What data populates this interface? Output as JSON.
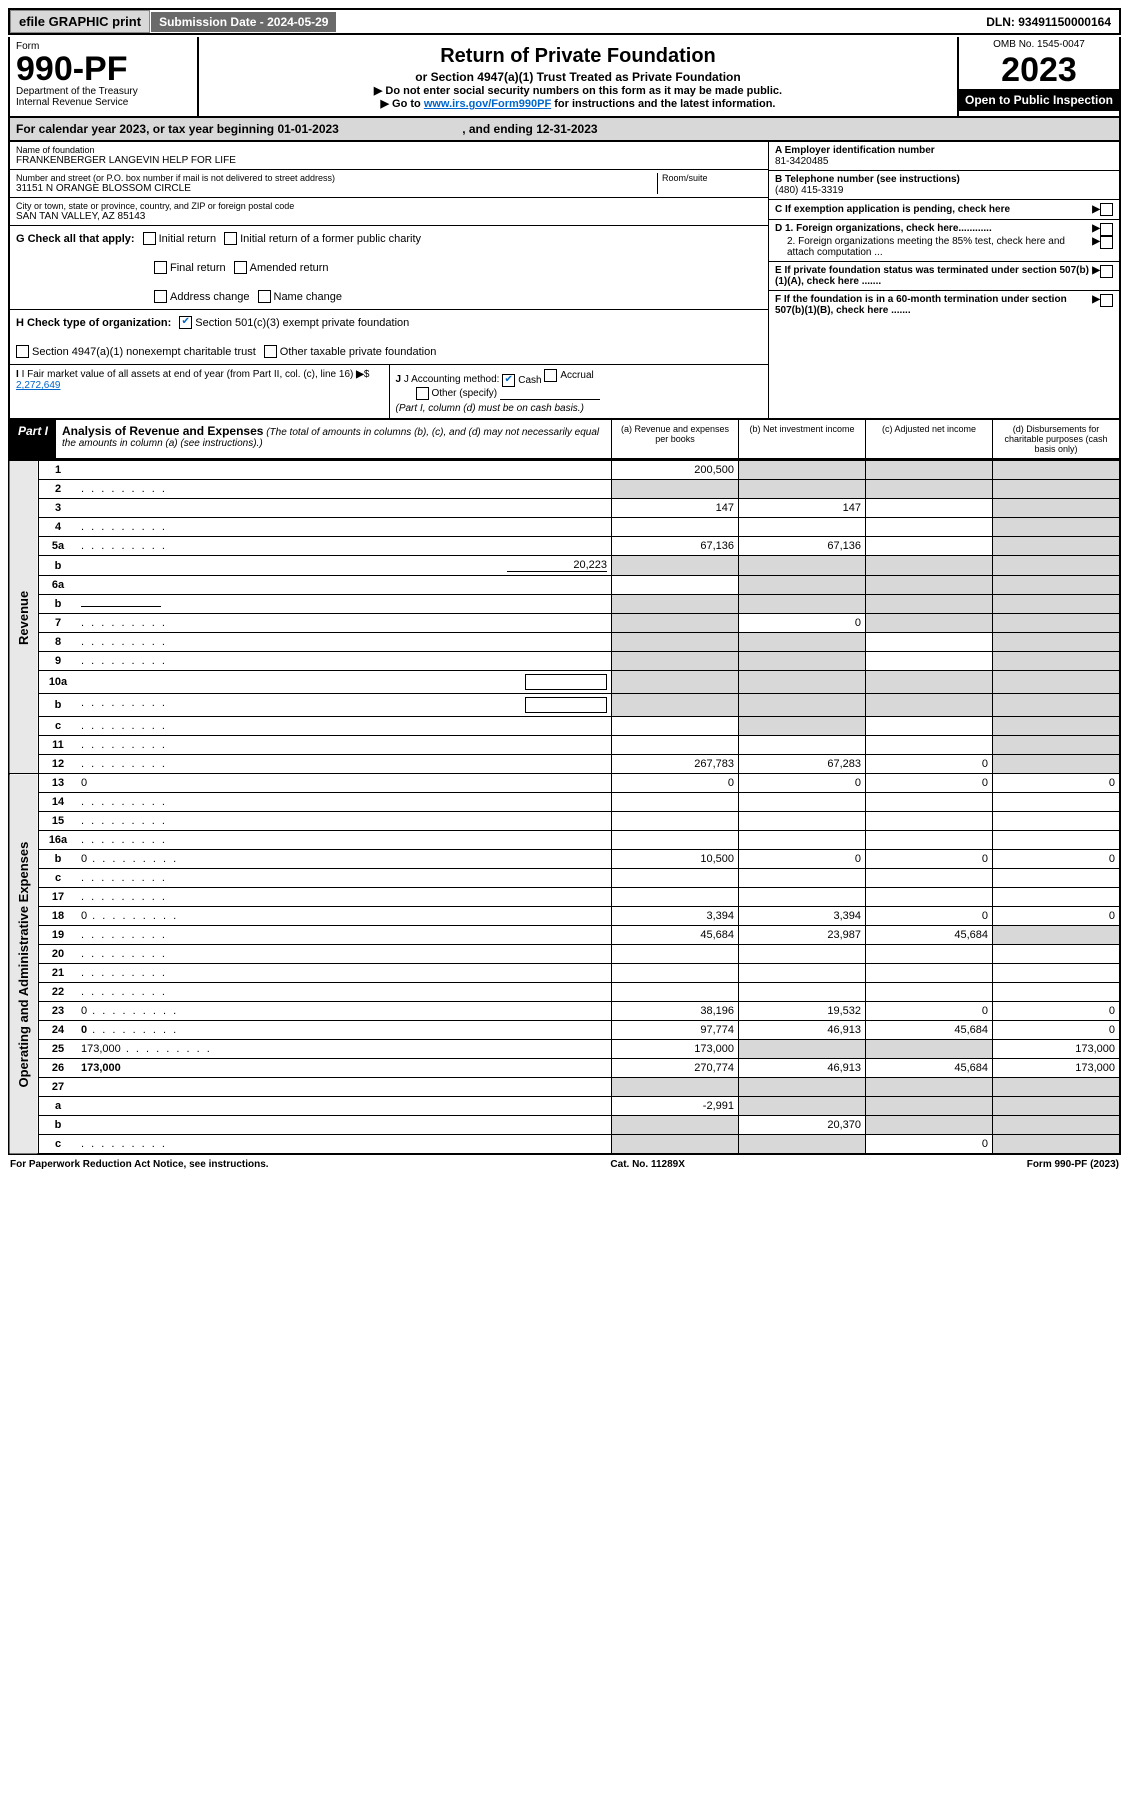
{
  "topbar": {
    "efile": "efile GRAPHIC print",
    "subdate_label": "Submission Date - 2024-05-29",
    "dln": "DLN: 93491150000164"
  },
  "header": {
    "form_label": "Form",
    "form_no": "990-PF",
    "dept1": "Department of the Treasury",
    "dept2": "Internal Revenue Service",
    "title": "Return of Private Foundation",
    "subtitle": "or Section 4947(a)(1) Trust Treated as Private Foundation",
    "note1": "▶ Do not enter social security numbers on this form as it may be made public.",
    "note2_pre": "▶ Go to ",
    "note2_link": "www.irs.gov/Form990PF",
    "note2_post": " for instructions and the latest information.",
    "omb": "OMB No. 1545-0047",
    "year": "2023",
    "open": "Open to Public Inspection"
  },
  "calyear": {
    "text_pre": "For calendar year 2023, or tax year beginning ",
    "begin": "01-01-2023",
    "mid": " , and ending ",
    "end": "12-31-2023"
  },
  "info": {
    "name_label": "Name of foundation",
    "name": "FRANKENBERGER LANGEVIN HELP FOR LIFE",
    "addr_label": "Number and street (or P.O. box number if mail is not delivered to street address)",
    "room_label": "Room/suite",
    "addr": "31151 N ORANGE BLOSSOM CIRCLE",
    "city_label": "City or town, state or province, country, and ZIP or foreign postal code",
    "city": "SAN TAN VALLEY, AZ  85143",
    "a_label": "A Employer identification number",
    "a_val": "81-3420485",
    "b_label": "B Telephone number (see instructions)",
    "b_val": "(480) 415-3319",
    "c_label": "C If exemption application is pending, check here",
    "d1": "D 1. Foreign organizations, check here............",
    "d2": "2. Foreign organizations meeting the 85% test, check here and attach computation ...",
    "e_label": "E  If private foundation status was terminated under section 507(b)(1)(A), check here .......",
    "f_label": "F  If the foundation is in a 60-month termination under section 507(b)(1)(B), check here .......",
    "g_label": "G Check all that apply:",
    "g_opts": [
      "Initial return",
      "Initial return of a former public charity",
      "Final return",
      "Amended return",
      "Address change",
      "Name change"
    ],
    "h_label": "H Check type of organization:",
    "h_opt1": "Section 501(c)(3) exempt private foundation",
    "h_opt2": "Section 4947(a)(1) nonexempt charitable trust",
    "h_opt3": "Other taxable private foundation",
    "i_label": "I Fair market value of all assets at end of year (from Part II, col. (c), line 16)",
    "i_val": "2,272,649",
    "j_label": "J Accounting method:",
    "j_cash": "Cash",
    "j_accrual": "Accrual",
    "j_other": "Other (specify)",
    "j_note": "(Part I, column (d) must be on cash basis.)"
  },
  "part1": {
    "label": "Part I",
    "title": "Analysis of Revenue and Expenses",
    "note": "(The total of amounts in columns (b), (c), and (d) may not necessarily equal the amounts in column (a) (see instructions).)",
    "col_a": "(a)   Revenue and expenses per books",
    "col_b": "(b)   Net investment income",
    "col_c": "(c)   Adjusted net income",
    "col_d": "(d)   Disbursements for charitable purposes (cash basis only)"
  },
  "sides": {
    "revenue": "Revenue",
    "expenses": "Operating and Administrative Expenses"
  },
  "rows": [
    {
      "n": "1",
      "d": "",
      "a": "200,500",
      "b": "",
      "c": "",
      "shade_b": true,
      "shade_c": true,
      "shade_d": true
    },
    {
      "n": "2",
      "d": "",
      "dots": true,
      "a": "",
      "b": "",
      "c": "",
      "shade_a": true,
      "shade_b": true,
      "shade_c": true,
      "shade_d": true
    },
    {
      "n": "3",
      "d": "",
      "a": "147",
      "b": "147",
      "c": "",
      "shade_d": true
    },
    {
      "n": "4",
      "d": "",
      "dots": true,
      "a": "",
      "b": "",
      "c": "",
      "shade_d": true
    },
    {
      "n": "5a",
      "d": "",
      "dots": true,
      "a": "67,136",
      "b": "67,136",
      "c": "",
      "shade_d": true
    },
    {
      "n": "b",
      "d": "",
      "ext": "20,223",
      "a": "",
      "b": "",
      "c": "",
      "shade_a": true,
      "shade_b": true,
      "shade_c": true,
      "shade_d": true
    },
    {
      "n": "6a",
      "d": "",
      "a": "",
      "b": "",
      "c": "",
      "shade_b": true,
      "shade_c": true,
      "shade_d": true
    },
    {
      "n": "b",
      "d": "",
      "underline": true,
      "a": "",
      "b": "",
      "c": "",
      "shade_a": true,
      "shade_b": true,
      "shade_c": true,
      "shade_d": true
    },
    {
      "n": "7",
      "d": "",
      "dots": true,
      "a": "",
      "b": "0",
      "c": "",
      "shade_a": true,
      "shade_c": true,
      "shade_d": true
    },
    {
      "n": "8",
      "d": "",
      "dots": true,
      "a": "",
      "b": "",
      "c": "",
      "shade_a": true,
      "shade_b": true,
      "shade_d": true
    },
    {
      "n": "9",
      "d": "",
      "dots": true,
      "a": "",
      "b": "",
      "c": "",
      "shade_a": true,
      "shade_b": true,
      "shade_d": true
    },
    {
      "n": "10a",
      "d": "",
      "box": true,
      "a": "",
      "b": "",
      "c": "",
      "shade_a": true,
      "shade_b": true,
      "shade_c": true,
      "shade_d": true
    },
    {
      "n": "b",
      "d": "",
      "dots": true,
      "box": true,
      "a": "",
      "b": "",
      "c": "",
      "shade_a": true,
      "shade_b": true,
      "shade_c": true,
      "shade_d": true
    },
    {
      "n": "c",
      "d": "",
      "dots": true,
      "a": "",
      "b": "",
      "c": "",
      "shade_b": true,
      "shade_d": true
    },
    {
      "n": "11",
      "d": "",
      "dots": true,
      "a": "",
      "b": "",
      "c": "",
      "shade_d": true
    },
    {
      "n": "12",
      "d": "",
      "dots": true,
      "bold": true,
      "a": "267,783",
      "b": "67,283",
      "c": "0",
      "shade_d": true
    },
    {
      "n": "13",
      "d": "0",
      "a": "0",
      "b": "0",
      "c": "0"
    },
    {
      "n": "14",
      "d": "",
      "dots": true,
      "a": "",
      "b": "",
      "c": ""
    },
    {
      "n": "15",
      "d": "",
      "dots": true,
      "a": "",
      "b": "",
      "c": ""
    },
    {
      "n": "16a",
      "d": "",
      "dots": true,
      "a": "",
      "b": "",
      "c": ""
    },
    {
      "n": "b",
      "d": "0",
      "dots": true,
      "a": "10,500",
      "b": "0",
      "c": "0"
    },
    {
      "n": "c",
      "d": "",
      "dots": true,
      "a": "",
      "b": "",
      "c": ""
    },
    {
      "n": "17",
      "d": "",
      "dots": true,
      "a": "",
      "b": "",
      "c": ""
    },
    {
      "n": "18",
      "d": "0",
      "dots": true,
      "a": "3,394",
      "b": "3,394",
      "c": "0"
    },
    {
      "n": "19",
      "d": "",
      "dots": true,
      "a": "45,684",
      "b": "23,987",
      "c": "45,684",
      "shade_d": true
    },
    {
      "n": "20",
      "d": "",
      "dots": true,
      "a": "",
      "b": "",
      "c": ""
    },
    {
      "n": "21",
      "d": "",
      "dots": true,
      "a": "",
      "b": "",
      "c": ""
    },
    {
      "n": "22",
      "d": "",
      "dots": true,
      "a": "",
      "b": "",
      "c": ""
    },
    {
      "n": "23",
      "d": "0",
      "dots": true,
      "a": "38,196",
      "b": "19,532",
      "c": "0"
    },
    {
      "n": "24",
      "d": "0",
      "dots": true,
      "bold": true,
      "a": "97,774",
      "b": "46,913",
      "c": "45,684"
    },
    {
      "n": "25",
      "d": "173,000",
      "dots": true,
      "a": "173,000",
      "b": "",
      "c": "",
      "shade_b": true,
      "shade_c": true
    },
    {
      "n": "26",
      "d": "173,000",
      "bold": true,
      "a": "270,774",
      "b": "46,913",
      "c": "45,684"
    },
    {
      "n": "27",
      "d": "",
      "a": "",
      "b": "",
      "c": "",
      "shade_a": true,
      "shade_b": true,
      "shade_c": true,
      "shade_d": true
    },
    {
      "n": "a",
      "d": "",
      "bold": true,
      "a": "-2,991",
      "b": "",
      "c": "",
      "shade_b": true,
      "shade_c": true,
      "shade_d": true
    },
    {
      "n": "b",
      "d": "",
      "bold": true,
      "a": "",
      "b": "20,370",
      "c": "",
      "shade_a": true,
      "shade_c": true,
      "shade_d": true
    },
    {
      "n": "c",
      "d": "",
      "dots": true,
      "bold": true,
      "a": "",
      "b": "",
      "c": "0",
      "shade_a": true,
      "shade_b": true,
      "shade_d": true
    }
  ],
  "footer": {
    "left": "For Paperwork Reduction Act Notice, see instructions.",
    "mid": "Cat. No. 11289X",
    "right": "Form 990-PF (2023)"
  }
}
